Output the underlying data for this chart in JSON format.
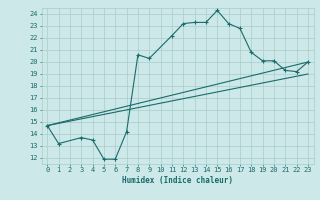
{
  "title": "",
  "xlabel": "Humidex (Indice chaleur)",
  "bg_color": "#cce8e8",
  "grid_color": "#aacccc",
  "line_color": "#1a6b6b",
  "xlim": [
    -0.5,
    23.5
  ],
  "ylim": [
    11.5,
    24.5
  ],
  "xticks": [
    0,
    1,
    2,
    3,
    4,
    5,
    6,
    7,
    8,
    9,
    10,
    11,
    12,
    13,
    14,
    15,
    16,
    17,
    18,
    19,
    20,
    21,
    22,
    23
  ],
  "yticks": [
    12,
    13,
    14,
    15,
    16,
    17,
    18,
    19,
    20,
    21,
    22,
    23,
    24
  ],
  "curve1_x": [
    0,
    1,
    3,
    4,
    5,
    6,
    7,
    8,
    9,
    11,
    12,
    13,
    14,
    15,
    16,
    17,
    18,
    19,
    20,
    21,
    22,
    23
  ],
  "curve1_y": [
    14.7,
    13.2,
    13.7,
    13.5,
    11.9,
    11.9,
    14.2,
    20.6,
    20.3,
    22.2,
    23.2,
    23.3,
    23.3,
    24.3,
    23.2,
    22.8,
    20.8,
    20.1,
    20.1,
    19.3,
    19.2,
    20.0
  ],
  "line2_x": [
    0,
    23
  ],
  "line2_y": [
    14.7,
    20.0
  ],
  "line3_x": [
    0,
    23
  ],
  "line3_y": [
    14.7,
    19.0
  ]
}
